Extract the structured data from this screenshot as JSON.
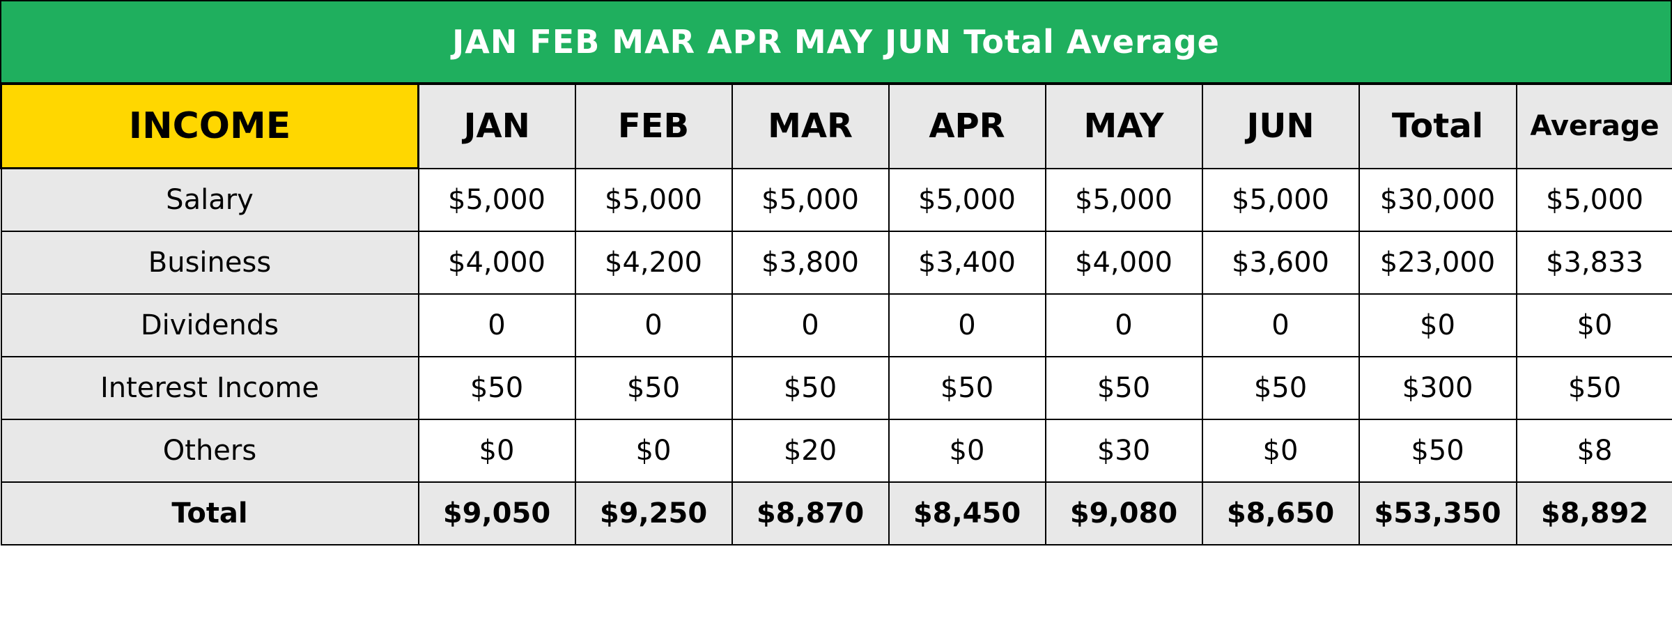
{
  "title": "JAN FEB MAR APR MAY JUN Total Average",
  "colors": {
    "title_bg": "#1faf5e",
    "title_text": "#ffffff",
    "income_bg": "#ffd700",
    "header_bg": "#e8e8e8",
    "label_bg": "#e8e8e8",
    "cell_bg": "#ffffff"
  },
  "table": {
    "corner_label": "INCOME",
    "columns": [
      "JAN",
      "FEB",
      "MAR",
      "APR",
      "MAY",
      "JUN",
      "Total",
      "Average"
    ],
    "rows": [
      {
        "label": "Salary",
        "values": [
          "$5,000",
          "$5,000",
          "$5,000",
          "$5,000",
          "$5,000",
          "$5,000",
          "$30,000",
          "$5,000"
        ]
      },
      {
        "label": "Business",
        "values": [
          "$4,000",
          "$4,200",
          "$3,800",
          "$3,400",
          "$4,000",
          "$3,600",
          "$23,000",
          "$3,833"
        ]
      },
      {
        "label": "Dividends",
        "values": [
          "0",
          "0",
          "0",
          "0",
          "0",
          "0",
          "$0",
          "$0"
        ]
      },
      {
        "label": "Interest Income",
        "values": [
          "$50",
          "$50",
          "$50",
          "$50",
          "$50",
          "$50",
          "$300",
          "$50"
        ]
      },
      {
        "label": "Others",
        "values": [
          "$0",
          "$0",
          "$20",
          "$0",
          "$30",
          "$0",
          "$50",
          "$8"
        ]
      }
    ],
    "total_row": {
      "label": "Total",
      "values": [
        "$9,050",
        "$9,250",
        "$8,870",
        "$8,450",
        "$9,080",
        "$8,650",
        "$53,350",
        "$8,892"
      ]
    }
  }
}
